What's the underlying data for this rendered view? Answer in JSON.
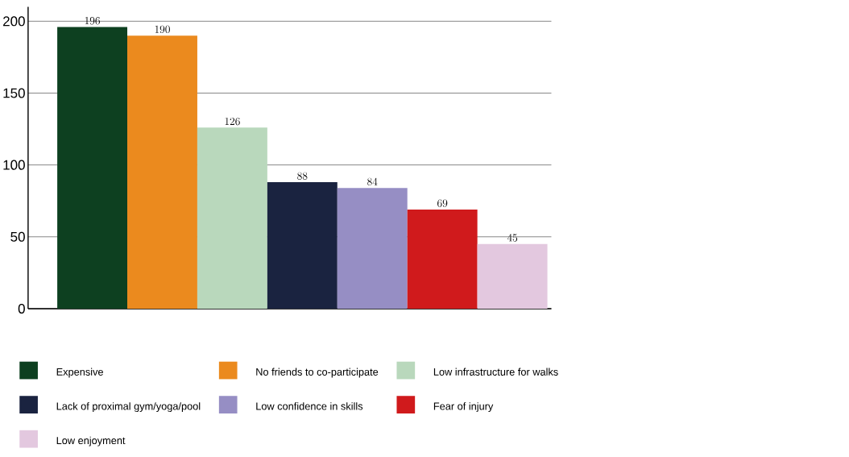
{
  "chart_data": {
    "type": "bar",
    "categories": [
      null
    ],
    "series": [
      {
        "name": "Expensive",
        "color": "#0d4020",
        "values": [
          196
        ]
      },
      {
        "name": "No friends to co-participate",
        "color": "#eb8a1e",
        "values": [
          190
        ]
      },
      {
        "name": "Low infrastructure for walks",
        "color": "#b9d8bc",
        "values": [
          126
        ]
      },
      {
        "name": "Lack of proximal gym/yoga/pool",
        "color": "#1a2340",
        "values": [
          88
        ]
      },
      {
        "name": "Low confidence in skills",
        "color": "#968ec4",
        "values": [
          84
        ]
      },
      {
        "name": "Fear of injury",
        "color": "#d01a1c",
        "values": [
          69
        ]
      },
      {
        "name": "Low enjoyment",
        "color": "#e3c8df",
        "values": [
          45
        ]
      }
    ],
    "ylim": [
      0,
      210
    ],
    "yticks": [
      0,
      50,
      100,
      150,
      200
    ],
    "grid": "y",
    "data_labels": true,
    "legend": "bottom"
  }
}
